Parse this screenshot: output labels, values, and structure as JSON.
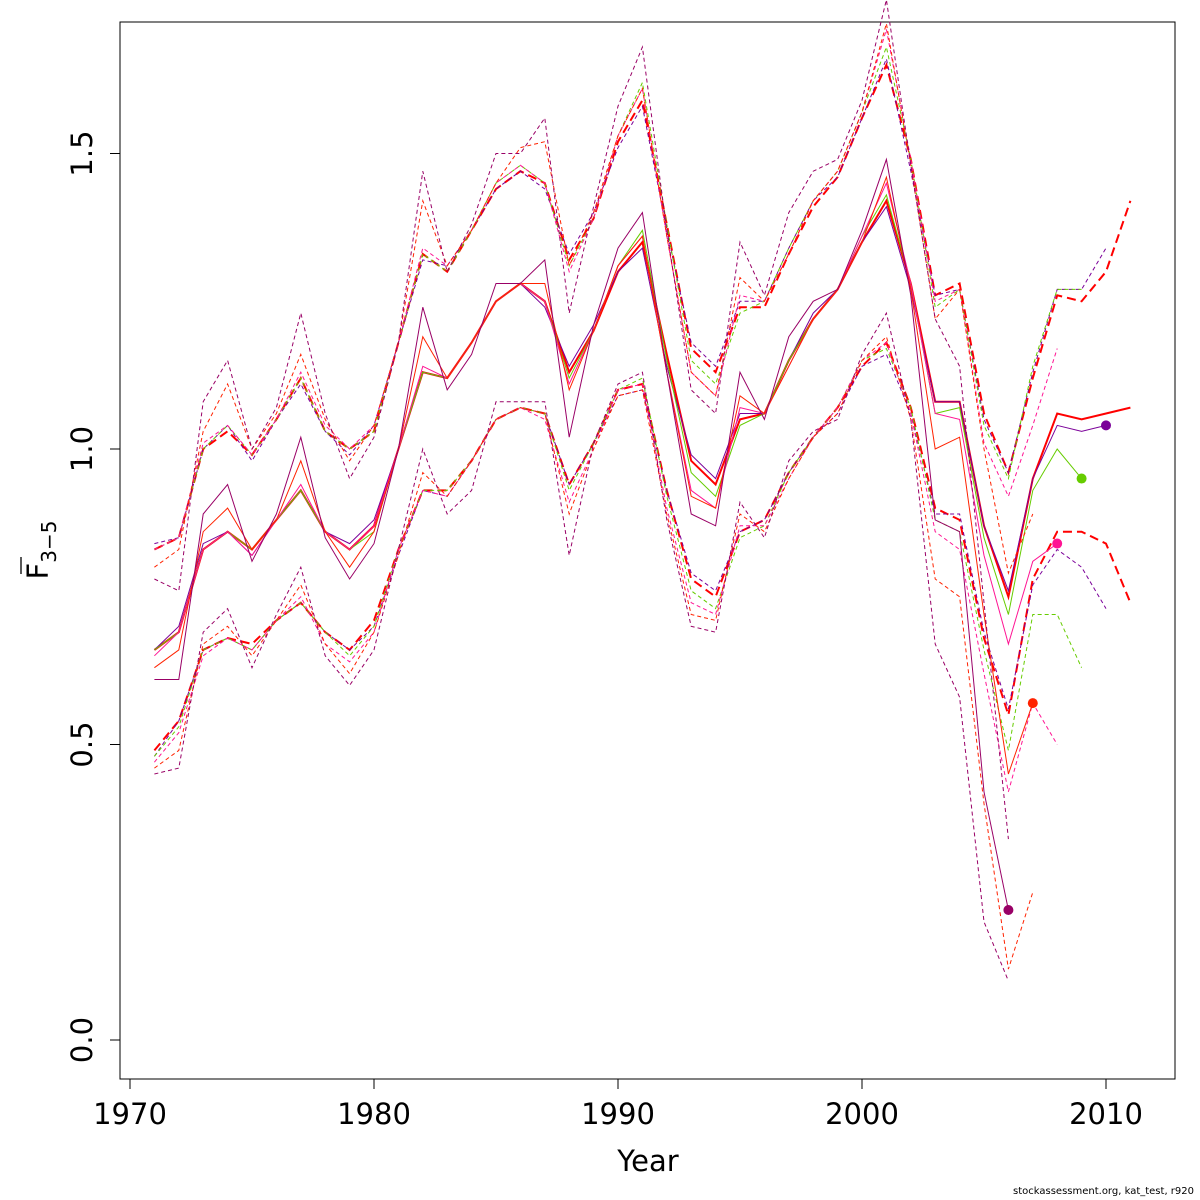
{
  "chart_data": {
    "type": "line",
    "xlabel": "Year",
    "ylabel": "F",
    "ylabel_subscript": "3−5",
    "xlim": [
      1970,
      2012
    ],
    "ylim": [
      -0.06,
      1.73
    ],
    "x_ticks": [
      1970,
      1980,
      1990,
      2000,
      2010
    ],
    "y_ticks": [
      0.0,
      0.5,
      1.0,
      1.5
    ],
    "y_tick_labels": [
      "0.0",
      "0.5",
      "1.0",
      "1.5"
    ],
    "grid": false,
    "legend": "none",
    "footer": "stockassessment.org, kat_test, r920",
    "series": [
      {
        "color": "#ff0000",
        "years": [
          1971,
          1972,
          1973,
          1974,
          1975,
          1976,
          1977,
          1978,
          1979,
          1980,
          1981,
          1982,
          1983,
          1984,
          1985,
          1986,
          1987,
          1988,
          1989,
          1990,
          1991,
          1992,
          1993,
          1994,
          1995,
          1996,
          1997,
          1998,
          1999,
          2000,
          2001,
          2002,
          2003,
          2004,
          2005,
          2006,
          2007,
          2008,
          2009,
          2010,
          2011
        ],
        "estimate": [
          0.66,
          0.69,
          0.83,
          0.86,
          0.83,
          0.88,
          0.93,
          0.86,
          0.83,
          0.87,
          1.0,
          1.13,
          1.12,
          1.18,
          1.25,
          1.28,
          1.25,
          1.13,
          1.2,
          1.3,
          1.35,
          1.16,
          0.98,
          0.94,
          1.05,
          1.06,
          1.15,
          1.22,
          1.27,
          1.35,
          1.42,
          1.28,
          1.08,
          1.08,
          0.87,
          0.75,
          0.95,
          1.06,
          1.05,
          1.06,
          1.07
        ],
        "lower": [
          0.49,
          0.54,
          0.66,
          0.68,
          0.67,
          0.71,
          0.74,
          0.69,
          0.66,
          0.71,
          0.83,
          0.93,
          0.93,
          0.98,
          1.05,
          1.07,
          1.06,
          0.94,
          1.01,
          1.1,
          1.11,
          0.93,
          0.78,
          0.75,
          0.86,
          0.88,
          0.96,
          1.02,
          1.07,
          1.14,
          1.18,
          1.07,
          0.9,
          0.88,
          0.68,
          0.55,
          0.78,
          0.86,
          0.86,
          0.84,
          0.74
        ],
        "upper": [
          0.83,
          0.85,
          1.0,
          1.03,
          0.99,
          1.05,
          1.12,
          1.03,
          1.0,
          1.03,
          1.18,
          1.33,
          1.3,
          1.37,
          1.44,
          1.47,
          1.45,
          1.32,
          1.39,
          1.52,
          1.59,
          1.38,
          1.17,
          1.13,
          1.24,
          1.24,
          1.33,
          1.41,
          1.46,
          1.56,
          1.65,
          1.49,
          1.26,
          1.28,
          1.06,
          0.96,
          1.12,
          1.26,
          1.25,
          1.3,
          1.42
        ],
        "marker": null
      },
      {
        "color": "#7b0099",
        "years": [
          1971,
          1972,
          1973,
          1974,
          1975,
          1976,
          1977,
          1978,
          1979,
          1980,
          1981,
          1982,
          1983,
          1984,
          1985,
          1986,
          1987,
          1988,
          1989,
          1990,
          1991,
          1992,
          1993,
          1994,
          1995,
          1996,
          1997,
          1998,
          1999,
          2000,
          2001,
          2002,
          2003,
          2004,
          2005,
          2006,
          2007,
          2008,
          2009,
          2010
        ],
        "estimate": [
          0.66,
          0.7,
          0.84,
          0.86,
          0.82,
          0.88,
          0.93,
          0.86,
          0.84,
          0.88,
          1.0,
          1.13,
          1.12,
          1.18,
          1.25,
          1.28,
          1.24,
          1.14,
          1.21,
          1.3,
          1.34,
          1.14,
          0.99,
          0.95,
          1.06,
          1.06,
          1.15,
          1.23,
          1.27,
          1.35,
          1.41,
          1.27,
          1.08,
          1.08,
          0.87,
          0.76,
          0.95,
          1.04,
          1.03,
          1.04
        ],
        "lower": [
          0.48,
          0.54,
          0.66,
          0.68,
          0.66,
          0.71,
          0.74,
          0.69,
          0.66,
          0.7,
          0.82,
          0.93,
          0.92,
          0.98,
          1.05,
          1.07,
          1.06,
          0.94,
          1.01,
          1.09,
          1.1,
          0.93,
          0.79,
          0.76,
          0.86,
          0.88,
          0.96,
          1.02,
          1.06,
          1.14,
          1.16,
          1.06,
          0.89,
          0.89,
          0.69,
          0.56,
          0.77,
          0.83,
          0.8,
          0.73
        ],
        "upper": [
          0.84,
          0.85,
          1.0,
          1.04,
          0.98,
          1.05,
          1.11,
          1.03,
          0.99,
          1.04,
          1.18,
          1.32,
          1.31,
          1.37,
          1.44,
          1.47,
          1.44,
          1.33,
          1.4,
          1.51,
          1.58,
          1.37,
          1.18,
          1.14,
          1.25,
          1.25,
          1.34,
          1.42,
          1.46,
          1.56,
          1.66,
          1.47,
          1.26,
          1.27,
          1.05,
          0.96,
          1.13,
          1.27,
          1.27,
          1.34
        ],
        "marker": 2010
      },
      {
        "color": "#66cc00",
        "years": [
          1971,
          1972,
          1973,
          1974,
          1975,
          1976,
          1977,
          1978,
          1979,
          1980,
          1981,
          1982,
          1983,
          1984,
          1985,
          1986,
          1987,
          1988,
          1989,
          1990,
          1991,
          1992,
          1993,
          1994,
          1995,
          1996,
          1997,
          1998,
          1999,
          2000,
          2001,
          2002,
          2003,
          2004,
          2005,
          2006,
          2007,
          2008,
          2009
        ],
        "estimate": [
          0.66,
          0.69,
          0.83,
          0.86,
          0.83,
          0.88,
          0.93,
          0.86,
          0.83,
          0.86,
          1.0,
          1.13,
          1.12,
          1.18,
          1.25,
          1.28,
          1.25,
          1.12,
          1.2,
          1.31,
          1.37,
          1.15,
          0.96,
          0.92,
          1.04,
          1.06,
          1.15,
          1.22,
          1.27,
          1.36,
          1.43,
          1.28,
          1.06,
          1.07,
          0.85,
          0.72,
          0.93,
          1.0,
          0.95
        ],
        "lower": [
          0.48,
          0.53,
          0.66,
          0.68,
          0.66,
          0.71,
          0.74,
          0.69,
          0.65,
          0.7,
          0.83,
          0.93,
          0.93,
          0.98,
          1.05,
          1.07,
          1.06,
          0.93,
          1.01,
          1.1,
          1.12,
          0.92,
          0.76,
          0.73,
          0.85,
          0.87,
          0.96,
          1.02,
          1.07,
          1.15,
          1.17,
          1.07,
          0.88,
          0.86,
          0.66,
          0.49,
          0.72,
          0.72,
          0.63
        ],
        "upper": [
          0.83,
          0.85,
          1.0,
          1.04,
          0.99,
          1.05,
          1.12,
          1.03,
          1.0,
          1.03,
          1.18,
          1.33,
          1.3,
          1.37,
          1.45,
          1.48,
          1.45,
          1.31,
          1.39,
          1.53,
          1.62,
          1.38,
          1.15,
          1.11,
          1.23,
          1.25,
          1.34,
          1.42,
          1.47,
          1.57,
          1.68,
          1.49,
          1.24,
          1.27,
          1.04,
          0.95,
          1.14,
          1.27,
          1.27
        ],
        "marker": 2009
      },
      {
        "color": "#ff1493",
        "years": [
          1971,
          1972,
          1973,
          1974,
          1975,
          1976,
          1977,
          1978,
          1979,
          1980,
          1981,
          1982,
          1983,
          1984,
          1985,
          1986,
          1987,
          1988,
          1989,
          1990,
          1991,
          1992,
          1993,
          1994,
          1995,
          1996,
          1997,
          1998,
          1999,
          2000,
          2001,
          2002,
          2003,
          2004,
          2005,
          2006,
          2007,
          2008
        ],
        "estimate": [
          0.65,
          0.69,
          0.83,
          0.86,
          0.82,
          0.88,
          0.94,
          0.86,
          0.83,
          0.87,
          1.0,
          1.14,
          1.12,
          1.18,
          1.25,
          1.28,
          1.25,
          1.11,
          1.2,
          1.31,
          1.36,
          1.13,
          0.93,
          0.9,
          1.07,
          1.06,
          1.14,
          1.22,
          1.27,
          1.36,
          1.45,
          1.28,
          1.06,
          1.05,
          0.82,
          0.67,
          0.81,
          0.84
        ],
        "lower": [
          0.47,
          0.52,
          0.65,
          0.68,
          0.66,
          0.71,
          0.75,
          0.67,
          0.64,
          0.69,
          0.83,
          0.93,
          0.92,
          0.98,
          1.05,
          1.07,
          1.05,
          0.91,
          1.0,
          1.1,
          1.11,
          0.9,
          0.74,
          0.72,
          0.87,
          0.87,
          0.95,
          1.02,
          1.07,
          1.15,
          1.18,
          1.06,
          0.86,
          0.83,
          0.62,
          0.42,
          0.57,
          0.5
        ],
        "upper": [
          0.83,
          0.85,
          1.01,
          1.04,
          0.99,
          1.05,
          1.13,
          1.04,
          1.0,
          1.04,
          1.18,
          1.34,
          1.31,
          1.37,
          1.45,
          1.48,
          1.45,
          1.3,
          1.39,
          1.53,
          1.61,
          1.36,
          1.13,
          1.09,
          1.26,
          1.25,
          1.33,
          1.42,
          1.47,
          1.57,
          1.71,
          1.49,
          1.25,
          1.27,
          1.01,
          0.92,
          1.04,
          1.17
        ],
        "marker": 2008
      },
      {
        "color": "#ff2200",
        "years": [
          1971,
          1972,
          1973,
          1974,
          1975,
          1976,
          1977,
          1978,
          1979,
          1980,
          1981,
          1982,
          1983,
          1984,
          1985,
          1986,
          1987,
          1988,
          1989,
          1990,
          1991,
          1992,
          1993,
          1994,
          1995,
          1996,
          1997,
          1998,
          1999,
          2000,
          2001,
          2002,
          2003,
          2004,
          2005,
          2006,
          2007
        ],
        "estimate": [
          0.63,
          0.66,
          0.86,
          0.9,
          0.83,
          0.88,
          0.98,
          0.86,
          0.8,
          0.86,
          1.0,
          1.19,
          1.12,
          1.18,
          1.25,
          1.28,
          1.28,
          1.1,
          1.2,
          1.31,
          1.36,
          1.13,
          0.92,
          0.9,
          1.09,
          1.06,
          1.14,
          1.22,
          1.27,
          1.35,
          1.46,
          1.27,
          1.0,
          1.02,
          0.72,
          0.45,
          0.57
        ],
        "lower": [
          0.46,
          0.49,
          0.67,
          0.7,
          0.65,
          0.71,
          0.77,
          0.67,
          0.62,
          0.69,
          0.82,
          0.96,
          0.92,
          0.98,
          1.05,
          1.07,
          1.06,
          0.89,
          1.0,
          1.09,
          1.1,
          0.89,
          0.72,
          0.71,
          0.89,
          0.86,
          0.95,
          1.02,
          1.06,
          1.15,
          1.19,
          1.05,
          0.78,
          0.75,
          0.4,
          0.12,
          0.25
        ],
        "upper": [
          0.8,
          0.83,
          1.03,
          1.11,
          1.0,
          1.06,
          1.16,
          1.05,
          0.98,
          1.04,
          1.18,
          1.42,
          1.31,
          1.37,
          1.45,
          1.51,
          1.52,
          1.31,
          1.4,
          1.53,
          1.61,
          1.36,
          1.13,
          1.09,
          1.29,
          1.25,
          1.33,
          1.42,
          1.47,
          1.57,
          1.72,
          1.48,
          1.22,
          1.27,
          1.0,
          0.79,
          0.89
        ],
        "marker": 2007
      },
      {
        "color": "#990066",
        "years": [
          1971,
          1972,
          1973,
          1974,
          1975,
          1976,
          1977,
          1978,
          1979,
          1980,
          1981,
          1982,
          1983,
          1984,
          1985,
          1986,
          1987,
          1988,
          1989,
          1990,
          1991,
          1992,
          1993,
          1994,
          1995,
          1996,
          1997,
          1998,
          1999,
          2000,
          2001,
          2002,
          2003,
          2004,
          2005,
          2006
        ],
        "estimate": [
          0.61,
          0.61,
          0.89,
          0.94,
          0.81,
          0.89,
          1.02,
          0.85,
          0.78,
          0.84,
          1.0,
          1.24,
          1.1,
          1.16,
          1.28,
          1.28,
          1.32,
          1.02,
          1.21,
          1.34,
          1.4,
          1.13,
          0.89,
          0.87,
          1.13,
          1.05,
          1.19,
          1.25,
          1.27,
          1.37,
          1.49,
          1.26,
          0.88,
          0.86,
          0.42,
          0.22
        ],
        "lower": [
          0.45,
          0.46,
          0.69,
          0.73,
          0.63,
          0.72,
          0.8,
          0.65,
          0.6,
          0.66,
          0.83,
          1.0,
          0.89,
          0.93,
          1.08,
          1.08,
          1.08,
          0.82,
          1.01,
          1.11,
          1.13,
          0.88,
          0.7,
          0.69,
          0.91,
          0.85,
          0.98,
          1.03,
          1.05,
          1.16,
          1.23,
          1.05,
          0.67,
          0.58,
          0.2,
          0.1
        ],
        "upper": [
          0.78,
          0.76,
          1.08,
          1.15,
          1.0,
          1.07,
          1.23,
          1.06,
          0.95,
          1.02,
          1.18,
          1.47,
          1.3,
          1.38,
          1.5,
          1.5,
          1.56,
          1.23,
          1.41,
          1.58,
          1.68,
          1.37,
          1.1,
          1.06,
          1.35,
          1.26,
          1.4,
          1.47,
          1.49,
          1.59,
          1.76,
          1.48,
          1.22,
          1.14,
          0.74,
          0.34
        ],
        "marker": 2006
      }
    ]
  }
}
